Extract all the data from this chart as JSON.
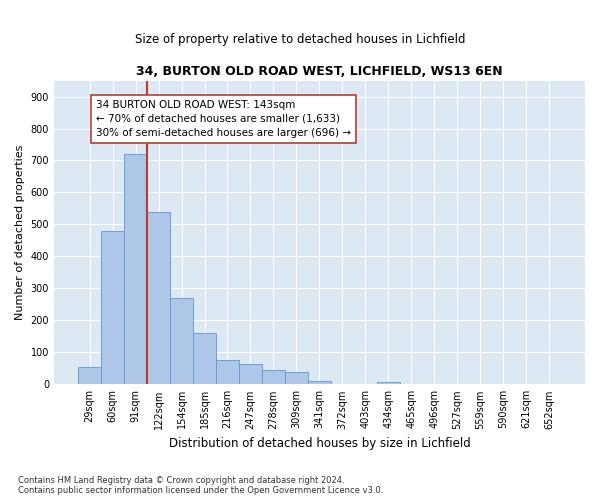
{
  "title1": "34, BURTON OLD ROAD WEST, LICHFIELD, WS13 6EN",
  "title2": "Size of property relative to detached houses in Lichfield",
  "xlabel": "Distribution of detached houses by size in Lichfield",
  "ylabel": "Number of detached properties",
  "footnote": "Contains HM Land Registry data © Crown copyright and database right 2024.\nContains public sector information licensed under the Open Government Licence v3.0.",
  "bin_labels": [
    "29sqm",
    "60sqm",
    "91sqm",
    "122sqm",
    "154sqm",
    "185sqm",
    "216sqm",
    "247sqm",
    "278sqm",
    "309sqm",
    "341sqm",
    "372sqm",
    "403sqm",
    "434sqm",
    "465sqm",
    "496sqm",
    "527sqm",
    "559sqm",
    "590sqm",
    "621sqm",
    "652sqm"
  ],
  "bar_values": [
    55,
    480,
    720,
    540,
    270,
    160,
    75,
    65,
    45,
    40,
    10,
    0,
    0,
    8,
    0,
    0,
    0,
    0,
    0,
    0,
    0
  ],
  "bar_color": "#aec6e8",
  "bar_edge_color": "#5b9bd5",
  "background_color": "#dde8f5",
  "grid_color": "#ffffff",
  "vline_color": "#c0392b",
  "annotation_line1": "34 BURTON OLD ROAD WEST: 143sqm",
  "annotation_line2": "← 70% of detached houses are smaller (1,633)",
  "annotation_line3": "30% of semi-detached houses are larger (696) →",
  "annotation_box_color": "#ffffff",
  "annotation_box_edge": "#c0392b",
  "ylim_max": 950,
  "yticks": [
    0,
    100,
    200,
    300,
    400,
    500,
    600,
    700,
    800,
    900
  ],
  "title1_fontsize": 9,
  "title2_fontsize": 8.5,
  "xlabel_fontsize": 8.5,
  "ylabel_fontsize": 8,
  "tick_fontsize": 7,
  "annot_fontsize": 7.5,
  "footnote_fontsize": 6
}
